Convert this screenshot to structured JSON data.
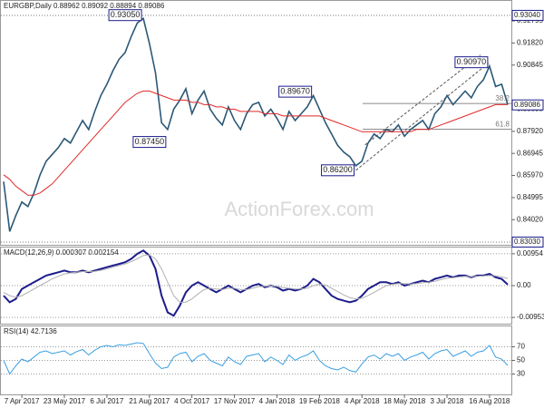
{
  "chart_data": [
    {
      "type": "line",
      "title": "EURGBP,Daily  0.88962 0.89092 0.88894 0.89086",
      "watermark": "ActionForex.com",
      "xlim": [
        0,
        83
      ],
      "ylim": [
        0.8291,
        0.93678
      ],
      "yticks": [
        {
          "value": 0.92795,
          "label": "0.92795"
        },
        {
          "value": 0.9182,
          "label": "0.91820"
        },
        {
          "value": 0.90845,
          "label": "0.90845"
        },
        {
          "value": 0.88895,
          "label": "0.88895"
        },
        {
          "value": 0.8792,
          "label": "0.87920"
        },
        {
          "value": 0.86945,
          "label": "0.86945"
        },
        {
          "value": 0.8597,
          "label": "0.85970"
        },
        {
          "value": 0.84995,
          "label": "0.84995"
        },
        {
          "value": 0.8402,
          "label": "0.84020"
        }
      ],
      "price_labels": [
        {
          "value": 0.9304,
          "label": "0.93040"
        },
        {
          "value": 0.89086,
          "label": "0.89086"
        },
        {
          "value": 0.8303,
          "label": "0.83030"
        }
      ],
      "annotations": [
        {
          "label": "0.93050",
          "x": 23,
          "y": 0.9305
        },
        {
          "label": "0.87450",
          "x": 27,
          "y": 0.8745
        },
        {
          "label": "0.89670",
          "x": 51,
          "y": 0.8967
        },
        {
          "label": "0.86200",
          "x": 58,
          "y": 0.862
        },
        {
          "label": "0.90970",
          "x": 80,
          "y": 0.9097
        }
      ],
      "fib_levels": [
        {
          "label": "38.2",
          "y": 0.8915
        },
        {
          "label": "61.8",
          "y": 0.8802
        }
      ],
      "series": [
        {
          "color": "#2b5876",
          "values": [
            0.857,
            0.835,
            0.842,
            0.848,
            0.846,
            0.852,
            0.86,
            0.866,
            0.869,
            0.872,
            0.876,
            0.874,
            0.879,
            0.884,
            0.88,
            0.888,
            0.895,
            0.9,
            0.906,
            0.911,
            0.914,
            0.921,
            0.927,
            0.929,
            0.918,
            0.905,
            0.883,
            0.88,
            0.889,
            0.893,
            0.898,
            0.887,
            0.893,
            0.897,
            0.889,
            0.885,
            0.882,
            0.89,
            0.884,
            0.88,
            0.887,
            0.891,
            0.892,
            0.886,
            0.889,
            0.885,
            0.88,
            0.888,
            0.884,
            0.887,
            0.89,
            0.895,
            0.889,
            0.883,
            0.878,
            0.873,
            0.87,
            0.868,
            0.864,
            0.866,
            0.874,
            0.878,
            0.876,
            0.88,
            0.879,
            0.882,
            0.877,
            0.88,
            0.882,
            0.884,
            0.88,
            0.887,
            0.89,
            0.895,
            0.891,
            0.894,
            0.897,
            0.894,
            0.899,
            0.902,
            0.908,
            0.899,
            0.9,
            0.891
          ]
        },
        {
          "color": "#e02828",
          "values": [
            0.86,
            0.858,
            0.855,
            0.853,
            0.851,
            0.851,
            0.852,
            0.854,
            0.856,
            0.859,
            0.862,
            0.865,
            0.868,
            0.871,
            0.874,
            0.877,
            0.88,
            0.883,
            0.886,
            0.889,
            0.892,
            0.894,
            0.896,
            0.897,
            0.897,
            0.896,
            0.895,
            0.894,
            0.893,
            0.893,
            0.893,
            0.892,
            0.892,
            0.891,
            0.891,
            0.89,
            0.89,
            0.889,
            0.889,
            0.888,
            0.888,
            0.888,
            0.888,
            0.887,
            0.887,
            0.887,
            0.886,
            0.886,
            0.886,
            0.886,
            0.886,
            0.886,
            0.886,
            0.885,
            0.884,
            0.883,
            0.882,
            0.881,
            0.88,
            0.879,
            0.879,
            0.879,
            0.879,
            0.879,
            0.879,
            0.879,
            0.879,
            0.879,
            0.88,
            0.88,
            0.88,
            0.881,
            0.882,
            0.883,
            0.884,
            0.885,
            0.886,
            0.887,
            0.888,
            0.889,
            0.89,
            0.891,
            0.891,
            0.891
          ]
        }
      ]
    },
    {
      "type": "line",
      "title": "MACD(12,26,9) 0.000307 0.002154",
      "xlim": [
        0,
        83
      ],
      "ylim": [
        -0.0114,
        0.0114
      ],
      "grid": true,
      "yticks": [
        {
          "value": 0.00954,
          "label": "0.00954"
        },
        {
          "value": 0,
          "label": "0.00"
        },
        {
          "value": -0.009538,
          "label": "-0.009538"
        }
      ],
      "series": [
        {
          "color": "#1c1c8c",
          "values": [
            -0.003,
            -0.005,
            -0.004,
            -0.001,
            0,
            0.001,
            0.002,
            0.003,
            0.0035,
            0.004,
            0.0045,
            0.004,
            0.004,
            0.0045,
            0.004,
            0.0045,
            0.005,
            0.0055,
            0.006,
            0.0065,
            0.007,
            0.008,
            0.0095,
            0.0105,
            0.009,
            0.005,
            -0.003,
            -0.008,
            -0.009,
            -0.006,
            -0.002,
            0,
            0.001,
            0,
            -0.001,
            -0.002,
            -0.001,
            0,
            -0.001,
            -0.002,
            -0.001,
            0,
            0.0005,
            -0.0005,
            0,
            -0.0005,
            -0.0015,
            -0.001,
            -0.0015,
            -0.001,
            0,
            0.002,
            0.001,
            -0.001,
            -0.003,
            -0.004,
            -0.0045,
            -0.005,
            -0.0045,
            -0.003,
            -0.001,
            0,
            0.001,
            0.001,
            0.0005,
            0.001,
            0,
            0.0005,
            0.001,
            0.0015,
            0.001,
            0.002,
            0.0025,
            0.003,
            0.0025,
            0.003,
            0.003,
            0.0025,
            0.003,
            0.003,
            0.0035,
            0.0025,
            0.002,
            0.000307
          ]
        },
        {
          "color": "#b0b0b0",
          "values": [
            -0.002,
            -0.003,
            -0.0035,
            -0.003,
            -0.002,
            -0.001,
            0,
            0.001,
            0.002,
            0.0028,
            0.0035,
            0.0038,
            0.004,
            0.0042,
            0.0042,
            0.0043,
            0.0046,
            0.005,
            0.0055,
            0.006,
            0.0065,
            0.0072,
            0.008,
            0.009,
            0.0092,
            0.008,
            0.005,
            0.001,
            -0.003,
            -0.005,
            -0.005,
            -0.004,
            -0.0025,
            -0.0012,
            -0.0008,
            -0.001,
            -0.0012,
            -0.0008,
            -0.0008,
            -0.0012,
            -0.0012,
            -0.0008,
            -0.0003,
            -0.0002,
            -0.0001,
            -0.0002,
            -0.0006,
            -0.0008,
            -0.001,
            -0.001,
            -0.0008,
            0,
            0.0004,
            0.0002,
            -0.0008,
            -0.0018,
            -0.0028,
            -0.0036,
            -0.004,
            -0.0038,
            -0.003,
            -0.002,
            -0.001,
            0,
            0.0004,
            0.0006,
            0.0006,
            0.0005,
            0.0006,
            0.0009,
            0.001,
            0.0013,
            0.0018,
            0.0022,
            0.0024,
            0.0026,
            0.0028,
            0.0027,
            0.0028,
            0.0029,
            0.003,
            0.0029,
            0.0026,
            0.002154
          ]
        }
      ]
    },
    {
      "type": "line",
      "title": "RSI(14) 42.7136",
      "xlim": [
        0,
        83
      ],
      "ylim": [
        0,
        100
      ],
      "grid": true,
      "yticks": [
        70,
        50,
        30
      ],
      "xticks": [
        {
          "value": 3,
          "label": "7 Apr 2017"
        },
        {
          "value": 10,
          "label": "23 May 2017"
        },
        {
          "value": 17,
          "label": "6 Jul 2017"
        },
        {
          "value": 24,
          "label": "21 Aug 2017"
        },
        {
          "value": 31,
          "label": "4 Oct 2017"
        },
        {
          "value": 38,
          "label": "17 Nov 2017"
        },
        {
          "value": 45,
          "label": "4 Jan 2018"
        },
        {
          "value": 52,
          "label": "19 Feb 2018"
        },
        {
          "value": 59,
          "label": "4 Apr 2018"
        },
        {
          "value": 66,
          "label": "18 May 2018"
        },
        {
          "value": 73,
          "label": "3 Jul 2018"
        },
        {
          "value": 80,
          "label": "16 Aug 2018"
        }
      ],
      "series": [
        {
          "color": "#3a9fe0",
          "values": [
            50,
            30,
            42,
            52,
            48,
            55,
            62,
            64,
            60,
            62,
            64,
            58,
            63,
            66,
            58,
            65,
            70,
            72,
            70,
            73,
            72,
            74,
            76,
            75,
            60,
            46,
            38,
            40,
            55,
            60,
            62,
            48,
            56,
            60,
            50,
            46,
            42,
            55,
            48,
            44,
            56,
            58,
            60,
            48,
            55,
            50,
            44,
            58,
            50,
            55,
            58,
            64,
            50,
            42,
            38,
            36,
            40,
            35,
            33,
            45,
            55,
            58,
            52,
            60,
            56,
            60,
            50,
            55,
            58,
            62,
            52,
            60,
            64,
            66,
            56,
            60,
            64,
            56,
            62,
            64,
            72,
            55,
            52,
            42.7136
          ]
        }
      ]
    }
  ]
}
